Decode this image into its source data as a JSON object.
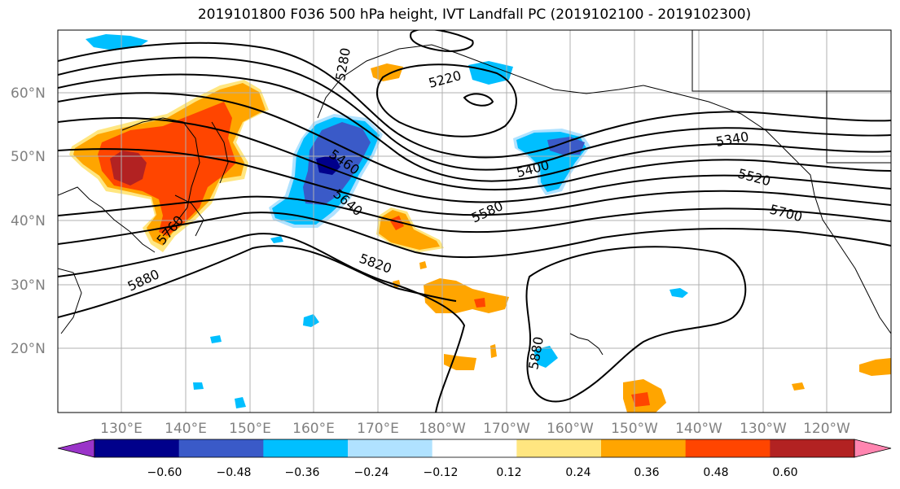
{
  "title": "2019101800 F036 500 hPa height, IVT Landfall PC (2019102100 - 2019102300)",
  "lat_labels": [
    "60°N",
    "50°N",
    "40°N",
    "30°N",
    "20°N"
  ],
  "lon_labels": [
    "130°E",
    "140°E",
    "150°E",
    "160°E",
    "170°E",
    "180°W",
    "170°W",
    "160°W",
    "150°W",
    "140°W",
    "130°W",
    "120°W"
  ],
  "contour_labels": [
    "5280",
    "5220",
    "5340",
    "5460",
    "5400",
    "5520",
    "5640",
    "5580",
    "5700",
    "5760",
    "5820",
    "5880",
    "5880"
  ],
  "colorbar": {
    "ticks": [
      "−0.60",
      "−0.48",
      "−0.36",
      "−0.24",
      "−0.12",
      "0.12",
      "0.24",
      "0.36",
      "0.48",
      "0.60"
    ],
    "colors": [
      "#9a34c9",
      "#00008b",
      "#3a5ac8",
      "#00bfff",
      "#b0e2ff",
      "#ffffff",
      "#ffe680",
      "#ffa500",
      "#ff4500",
      "#b22222",
      "#ff85b0"
    ]
  }
}
